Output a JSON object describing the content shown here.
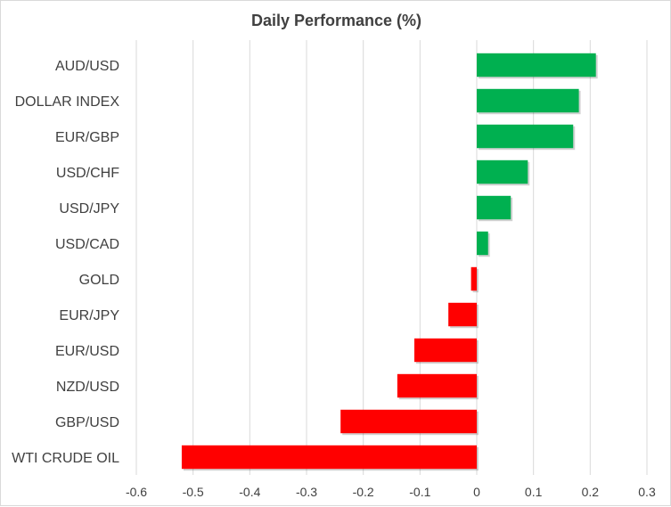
{
  "chart_data": {
    "type": "bar",
    "orientation": "horizontal",
    "title": "Daily Performance (%)",
    "xlabel": "",
    "ylabel": "",
    "categories": [
      "AUD/USD",
      "DOLLAR INDEX",
      "EUR/GBP",
      "USD/CHF",
      "USD/JPY",
      "USD/CAD",
      "GOLD",
      "EUR/JPY",
      "EUR/USD",
      "NZD/USD",
      "GBP/USD",
      "WTI CRUDE OIL"
    ],
    "values": [
      0.21,
      0.18,
      0.17,
      0.09,
      0.06,
      0.02,
      -0.01,
      -0.05,
      -0.11,
      -0.14,
      -0.24,
      -0.52
    ],
    "xlim": [
      -0.6,
      0.3
    ],
    "xticks": [
      -0.6,
      -0.5,
      -0.4,
      -0.3,
      -0.2,
      -0.1,
      0,
      0.1,
      0.2,
      0.3
    ],
    "xtick_labels": [
      "-0.6",
      "-0.5",
      "-0.4",
      "-0.3",
      "-0.2",
      "-0.1",
      "0",
      "0.1",
      "0.2",
      "0.3"
    ],
    "grid": "vertical",
    "legend": "none",
    "colors": {
      "positive": "#00b050",
      "negative": "#ff0000",
      "grid": "#d9d9d9",
      "text": "#404040"
    }
  }
}
